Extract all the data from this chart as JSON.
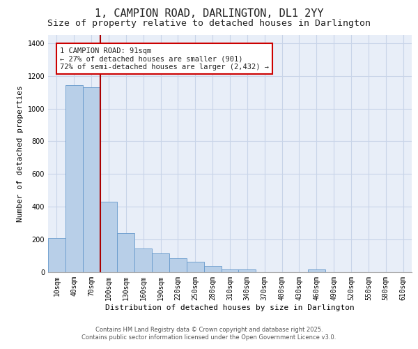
{
  "title_line1": "1, CAMPION ROAD, DARLINGTON, DL1 2YY",
  "title_line2": "Size of property relative to detached houses in Darlington",
  "xlabel": "Distribution of detached houses by size in Darlington",
  "ylabel": "Number of detached properties",
  "categories": [
    "10sqm",
    "40sqm",
    "70sqm",
    "100sqm",
    "130sqm",
    "160sqm",
    "190sqm",
    "220sqm",
    "250sqm",
    "280sqm",
    "310sqm",
    "340sqm",
    "370sqm",
    "400sqm",
    "430sqm",
    "460sqm",
    "490sqm",
    "520sqm",
    "550sqm",
    "580sqm",
    "610sqm"
  ],
  "bar_values": [
    210,
    1145,
    1130,
    430,
    240,
    145,
    115,
    85,
    65,
    40,
    15,
    15,
    0,
    0,
    0,
    15,
    0,
    0,
    0,
    0,
    0
  ],
  "bar_color": "#b8cfe8",
  "bar_edge_color": "#6699cc",
  "bar_width": 1.0,
  "ylim": [
    0,
    1450
  ],
  "yticks": [
    0,
    200,
    400,
    600,
    800,
    1000,
    1200,
    1400
  ],
  "property_line_color": "#aa0000",
  "annotation_text": "1 CAMPION ROAD: 91sqm\n← 27% of detached houses are smaller (901)\n72% of semi-detached houses are larger (2,432) →",
  "annotation_box_color": "#cc0000",
  "annotation_bg": "#ffffff",
  "grid_color": "#c8d4e8",
  "bg_color": "#e8eef8",
  "footer_line1": "Contains HM Land Registry data © Crown copyright and database right 2025.",
  "footer_line2": "Contains public sector information licensed under the Open Government Licence v3.0.",
  "title_fontsize": 11,
  "subtitle_fontsize": 9.5,
  "xlabel_fontsize": 8,
  "ylabel_fontsize": 8,
  "tick_fontsize": 7,
  "annotation_fontsize": 7.5,
  "footer_fontsize": 6
}
